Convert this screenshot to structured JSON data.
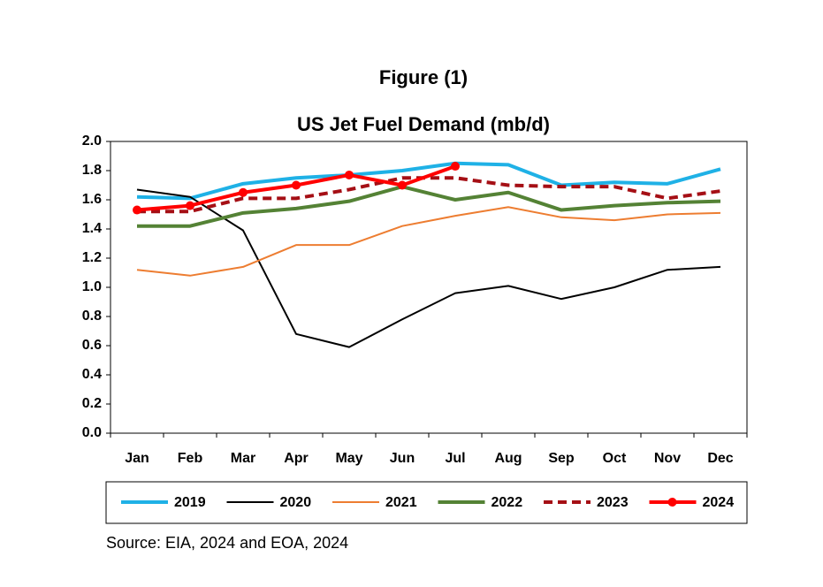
{
  "chart_data": {
    "type": "line",
    "title": "Figure (1)",
    "subtitle": "US Jet Fuel Demand (mb/d)",
    "source": "Source: EIA, 2024 and EOA, 2024",
    "categories": [
      "Jan",
      "Feb",
      "Mar",
      "Apr",
      "May",
      "Jun",
      "Jul",
      "Aug",
      "Sep",
      "Oct",
      "Nov",
      "Dec"
    ],
    "ylim": [
      0,
      2
    ],
    "yticks": [
      {
        "value": 0,
        "label": "0.0"
      },
      0.2,
      0.4,
      0.6,
      0.8,
      {
        "value": 1,
        "label": "1.0"
      },
      1.2,
      1.4,
      1.6,
      1.8,
      {
        "value": 2,
        "label": "2.0"
      }
    ],
    "grid": false,
    "legend": "bottom",
    "series": [
      {
        "name": "2019",
        "color": "#1fb1e6",
        "linewidth": 4,
        "values": [
          1.62,
          1.61,
          1.71,
          1.75,
          1.77,
          1.8,
          1.85,
          1.84,
          1.7,
          1.72,
          1.71,
          1.81
        ]
      },
      {
        "name": "2020",
        "color": "#000000",
        "linewidth": 2,
        "values": [
          1.67,
          1.62,
          1.39,
          0.68,
          0.59,
          0.78,
          0.96,
          1.01,
          0.92,
          1.0,
          1.12,
          1.14
        ]
      },
      {
        "name": "2021",
        "color": "#ed7d31",
        "linewidth": 2,
        "values": [
          1.12,
          1.08,
          1.14,
          1.29,
          1.29,
          1.42,
          1.49,
          1.55,
          1.48,
          1.46,
          1.5,
          1.51
        ]
      },
      {
        "name": "2022",
        "color": "#548235",
        "linewidth": 4,
        "values": [
          1.42,
          1.42,
          1.51,
          1.54,
          1.59,
          1.69,
          1.6,
          1.65,
          1.53,
          1.56,
          1.58,
          1.59
        ]
      },
      {
        "name": "2023",
        "color": "#a50f15",
        "linewidth": 4,
        "dashed": true,
        "values": [
          1.52,
          1.52,
          1.61,
          1.61,
          1.67,
          1.75,
          1.75,
          1.7,
          1.69,
          1.69,
          1.61,
          1.66
        ]
      },
      {
        "name": "2024",
        "color": "#ff0000",
        "linewidth": 4,
        "marker": true,
        "values": [
          1.53,
          1.56,
          1.65,
          1.7,
          1.77,
          1.7,
          1.83,
          null,
          null,
          null,
          null,
          null
        ]
      }
    ]
  }
}
